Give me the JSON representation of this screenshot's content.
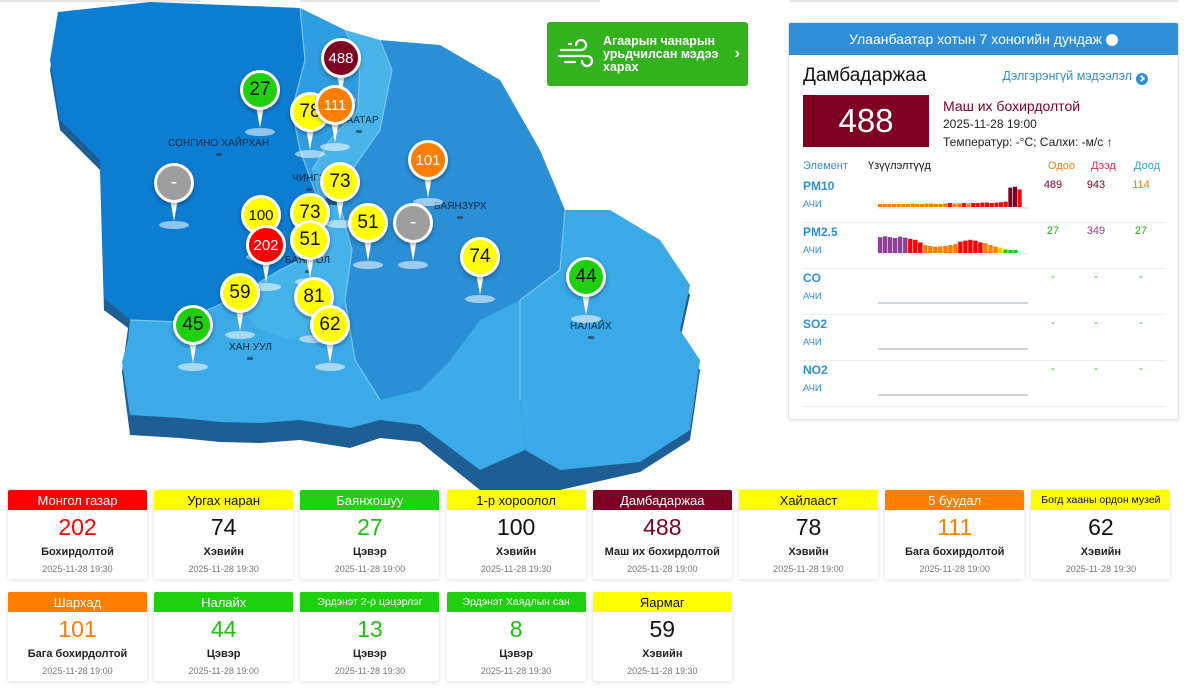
{
  "map": {
    "districts": [
      "СОНГИНО ХАЙРХАН",
      "ЧИНГЭ",
      "БААТАР",
      "БАЯНЗҮРХ",
      "БАЯН ОЛ",
      "ХАН УУЛ",
      "НАЛАЙХ"
    ],
    "pins": [
      {
        "value": "27",
        "color": "#1fd00f"
      },
      {
        "value": "488",
        "color": "#7e0023"
      },
      {
        "value": "78",
        "color": "#ffff00"
      },
      {
        "value": "111",
        "color": "#ff7e00"
      },
      {
        "value": "101",
        "color": "#ff7e00"
      },
      {
        "value": "-",
        "color": "#9e9e9e"
      },
      {
        "value": "73",
        "color": "#ffff00"
      },
      {
        "value": "100",
        "color": "#ffff00"
      },
      {
        "value": "73",
        "color": "#ffff00"
      },
      {
        "value": "51",
        "color": "#ffff00"
      },
      {
        "value": "-",
        "color": "#9e9e9e"
      },
      {
        "value": "202",
        "color": "#ff0000"
      },
      {
        "value": "51",
        "color": "#ffff00"
      },
      {
        "value": "74",
        "color": "#ffff00"
      },
      {
        "value": "44",
        "color": "#1fd00f"
      },
      {
        "value": "59",
        "color": "#ffff00"
      },
      {
        "value": "81",
        "color": "#ffff00"
      },
      {
        "value": "45",
        "color": "#1fd00f"
      },
      {
        "value": "62",
        "color": "#ffff00"
      }
    ]
  },
  "forecast": {
    "label": "Агаарын чанарын урьдчилсан мэдээ харах",
    "icon": "wind-icon"
  },
  "panel": {
    "header": "Улаанбаатар хотын 7 хоногийн дундаж",
    "station": "Дамбадаржаа",
    "more": "Дэлгэрэнгүй мэдээлэл",
    "aqi": "488",
    "level": "Маш их бохирдолтой",
    "datetime": "2025-11-28 19:00",
    "weather": "Температур:  -°C; Салхи:  -м/с",
    "cols": {
      "element": "Элемент",
      "indicators": "Үзүүлэлтүүд",
      "now": "Одоо",
      "max": "Дээд",
      "min": "Доод"
    },
    "rows": [
      {
        "name": "PM10",
        "unit": "АЧИ",
        "now": "489",
        "max": "943",
        "min": "114",
        "bars": [
          30,
          30,
          35,
          30,
          35,
          30,
          35,
          40,
          35,
          35,
          40,
          40,
          35,
          35,
          40,
          45,
          40,
          40,
          45,
          40,
          45,
          45,
          50,
          50,
          45,
          50,
          55,
          60,
          220,
          230,
          200
        ]
      },
      {
        "name": "PM2.5",
        "unit": "АЧИ",
        "now": "27",
        "max": "349",
        "min": "27",
        "bars": [
          180,
          190,
          180,
          170,
          185,
          175,
          160,
          150,
          120,
          90,
          80,
          70,
          75,
          80,
          90,
          100,
          130,
          140,
          150,
          140,
          120,
          110,
          90,
          70,
          60,
          40,
          35,
          30
        ]
      },
      {
        "name": "CO",
        "unit": "АЧИ",
        "now": "-",
        "max": "-",
        "min": "-",
        "bars": []
      },
      {
        "name": "SO2",
        "unit": "АЧИ",
        "now": "-",
        "max": "-",
        "min": "-",
        "bars": []
      },
      {
        "name": "NO2",
        "unit": "АЧИ",
        "now": "-",
        "max": "-",
        "min": "-",
        "bars": []
      }
    ]
  },
  "cards": [
    {
      "title": "Монгол газар",
      "value": "202",
      "level": "Бохирдолтой",
      "date": "2025-11-28 19:30",
      "bg": "#ff0000",
      "fg": "#ffffff",
      "vc": "#ff0000"
    },
    {
      "title": "Ургах наран",
      "value": "74",
      "level": "Хэвийн",
      "date": "2025-11-28 19:30",
      "bg": "#ffff00",
      "fg": "#111111",
      "vc": "#111111"
    },
    {
      "title": "Баянхошуу",
      "value": "27",
      "level": "Цэвэр",
      "date": "2025-11-28 19:00",
      "bg": "#1fd00f",
      "fg": "#ffffff",
      "vc": "#1fc00f"
    },
    {
      "title": "1-р хороолол",
      "value": "100",
      "level": "Хэвийн",
      "date": "2025-11-28 19:30",
      "bg": "#ffff00",
      "fg": "#111111",
      "vc": "#111111"
    },
    {
      "title": "Дамбадаржаа",
      "value": "488",
      "level": "Маш их бохирдолтой",
      "date": "2025-11-28 19:00",
      "bg": "#7e0023",
      "fg": "#ffffff",
      "vc": "#7e0023"
    },
    {
      "title": "Хайлааст",
      "value": "78",
      "level": "Хэвийн",
      "date": "2025-11-28 19:00",
      "bg": "#ffff00",
      "fg": "#111111",
      "vc": "#111111"
    },
    {
      "title": "5 буудал",
      "value": "111",
      "level": "Бага бохирдолтой",
      "date": "2025-11-28 19:00",
      "bg": "#ff7e00",
      "fg": "#ffffff",
      "vc": "#ff7e00"
    },
    {
      "title": "Богд хааны ордон музей",
      "value": "62",
      "level": "Хэвийн",
      "date": "2025-11-28 19:30",
      "bg": "#ffff00",
      "fg": "#111111",
      "vc": "#111111"
    },
    {
      "title": "Шархад",
      "value": "101",
      "level": "Бага бохирдолтой",
      "date": "2025-11-28 19:00",
      "bg": "#ff7e00",
      "fg": "#ffffff",
      "vc": "#ff7e00"
    },
    {
      "title": "Налайх",
      "value": "44",
      "level": "Цэвэр",
      "date": "2025-11-28 19:00",
      "bg": "#1fd00f",
      "fg": "#ffffff",
      "vc": "#1fc00f"
    },
    {
      "title": "Эрдэнэт 2-р цэцэрлэг",
      "value": "13",
      "level": "Цэвэр",
      "date": "2025-11-28 19:30",
      "bg": "#1fd00f",
      "fg": "#ffffff",
      "vc": "#1fc00f"
    },
    {
      "title": "Эрдэнэт Хаядлын сан",
      "value": "8",
      "level": "Цэвэр",
      "date": "2025-11-28 19:30",
      "bg": "#1fd00f",
      "fg": "#ffffff",
      "vc": "#1fc00f"
    },
    {
      "title": "Яармаг",
      "value": "59",
      "level": "Хэвийн",
      "date": "2025-11-28 19:30",
      "bg": "#ffff00",
      "fg": "#111111",
      "vc": "#111111"
    }
  ]
}
